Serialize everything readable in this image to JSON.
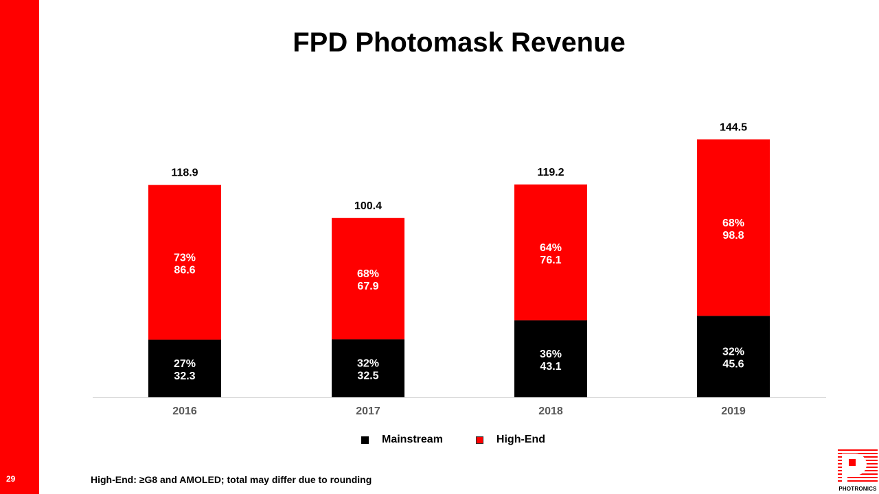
{
  "slide": {
    "title": "FPD Photomask Revenue",
    "page_number": "29",
    "footnote": "High-End: ≥G8 and AMOLED; total may differ due to rounding",
    "logo_text": "PHOTRONICS",
    "accent_color": "#ff0000"
  },
  "legend": {
    "mainstream": "Mainstream",
    "high_end": "High-End"
  },
  "chart_data": {
    "type": "bar",
    "stacked": true,
    "title": "FPD Photomask Revenue",
    "categories": [
      "2016",
      "2017",
      "2018",
      "2019"
    ],
    "series": [
      {
        "name": "Mainstream",
        "color": "#000000",
        "values": [
          32.3,
          32.5,
          43.1,
          45.6
        ],
        "labels": [
          "27%",
          "32%",
          "36%",
          "32%"
        ]
      },
      {
        "name": "High-End",
        "color": "#ff0000",
        "values": [
          86.6,
          67.9,
          76.1,
          98.8
        ],
        "labels": [
          "73%",
          "68%",
          "64%",
          "68%"
        ]
      }
    ],
    "totals": [
      118.9,
      100.4,
      119.2,
      144.5
    ],
    "ylim": [
      0,
      150
    ],
    "grid": false,
    "legend_position": "bottom"
  }
}
